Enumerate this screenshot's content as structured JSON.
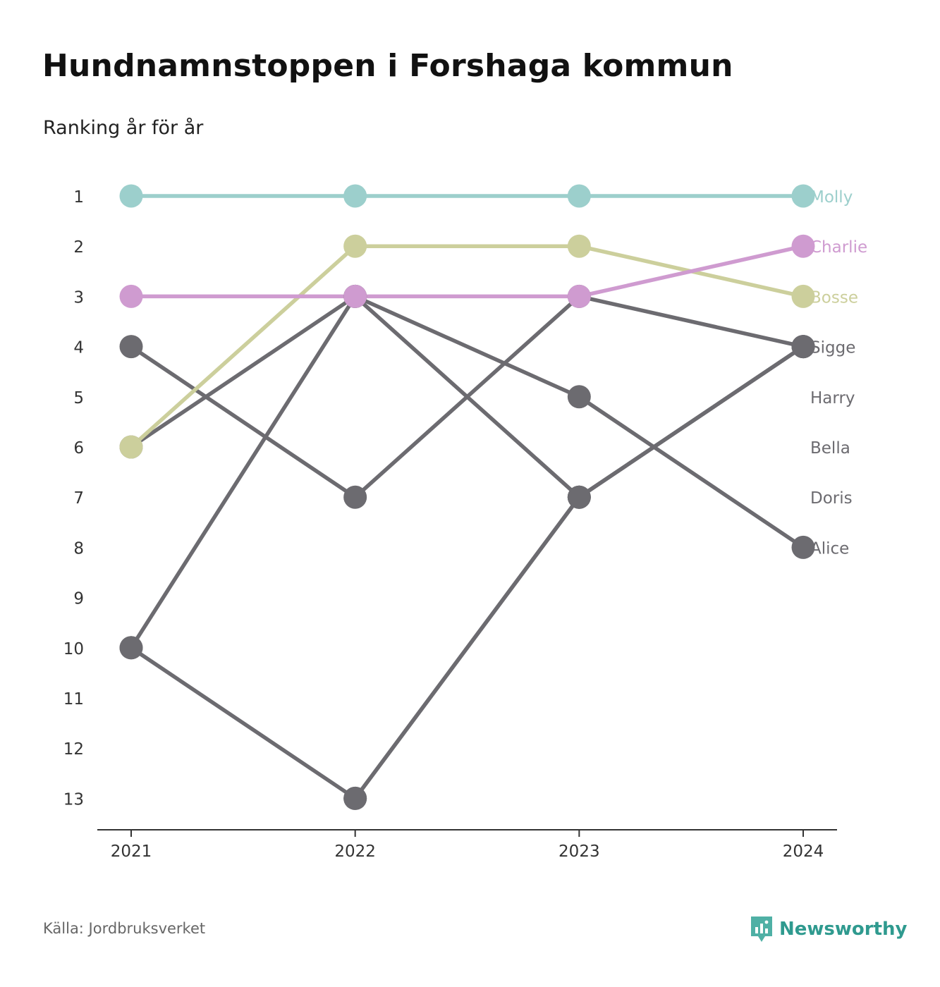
{
  "title": "Hundnamnstoppen i Forshaga kommun",
  "subtitle": "Ranking år för år",
  "source": "Källa: Jordbruksverket",
  "brand": {
    "name": "Newsworthy",
    "icon": "newsworthy-logo-icon",
    "color": "#2f9a8f"
  },
  "chart_data": {
    "type": "line",
    "x": [
      "2021",
      "2022",
      "2023",
      "2024"
    ],
    "y_ticks": [
      "1",
      "2",
      "3",
      "4",
      "5",
      "6",
      "7",
      "8",
      "9",
      "10",
      "11",
      "12",
      "13"
    ],
    "ylim": [
      1,
      13
    ],
    "y_inverted": true,
    "grid": false,
    "legend": "right end labels",
    "xlabel": "",
    "ylabel": "",
    "series": [
      {
        "name": "Alice",
        "values": [
          10,
          3,
          5,
          8
        ],
        "color": "#6c6b70"
      },
      {
        "name": "Doris",
        "values": [
          6,
          3,
          7,
          4
        ],
        "color": "#6c6b70"
      },
      {
        "name": "Bella",
        "values": [
          4,
          7,
          3,
          4
        ],
        "color": "#6c6b70"
      },
      {
        "name": "Harry",
        "values": [
          null,
          13,
          7,
          4
        ],
        "color": "#6c6b70"
      },
      {
        "name": "Sigge",
        "values": [
          10,
          13,
          7,
          4
        ],
        "color": "#6c6b70"
      },
      {
        "name": "Bosse",
        "values": [
          6,
          2,
          2,
          3
        ],
        "color": "#cccf9c"
      },
      {
        "name": "Charlie",
        "values": [
          3,
          3,
          3,
          2
        ],
        "color": "#cf9bd0"
      },
      {
        "name": "Molly",
        "values": [
          1,
          1,
          1,
          1
        ],
        "color": "#9ccfcc"
      }
    ],
    "end_labels": [
      {
        "name": "Molly",
        "rank": 1,
        "color": "#9ccfcc"
      },
      {
        "name": "Charlie",
        "rank": 2,
        "color": "#cf9bd0"
      },
      {
        "name": "Bosse",
        "rank": 3,
        "color": "#cccf9c"
      },
      {
        "name": "Sigge",
        "rank": 4,
        "color": "#6c6b70"
      },
      {
        "name": "Harry",
        "rank": 5,
        "color": "#6c6b70"
      },
      {
        "name": "Bella",
        "rank": 6,
        "color": "#6c6b70"
      },
      {
        "name": "Doris",
        "rank": 7,
        "color": "#6c6b70"
      },
      {
        "name": "Alice",
        "rank": 8,
        "color": "#6c6b70"
      }
    ]
  }
}
